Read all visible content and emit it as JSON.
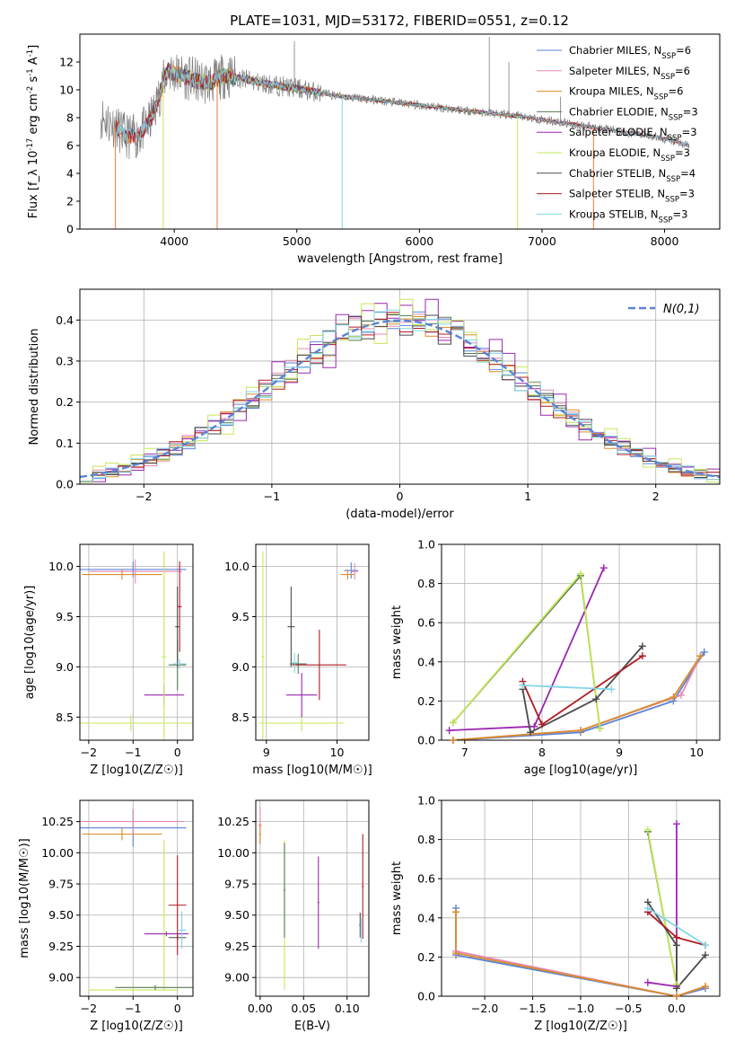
{
  "title": "PLATE=1031, MJD=53172, FIBERID=0551, z=0.12",
  "colors": {
    "chabrier_miles": "#5b84d6",
    "salpeter_miles": "#e58ab4",
    "kroupa_miles": "#d98c2b",
    "chabrier_elodie": "#5a7a55",
    "salpeter_elodie": "#9b27b0",
    "kroupa_elodie": "#c6e85a",
    "chabrier_stelib": "#4a4a4a",
    "salpeter_stelib": "#b01c24",
    "kroupa_stelib": "#82d6e6",
    "spectrum": "#7d7d7d",
    "normal": "#5b84d6",
    "orange": "#ef7b2f"
  },
  "chart_data": [
    {
      "id": "spectrum",
      "type": "line",
      "xlabel": "wavelength [Angstrom, rest frame]",
      "ylabel": "Flux [f_λ 10^-17 erg cm^-2 s^-1 A^-1]",
      "xlim": [
        3230,
        8450
      ],
      "ylim": [
        0,
        14
      ],
      "xticks": [
        4000,
        5000,
        6000,
        7000,
        8000
      ],
      "yticks": [
        0,
        2,
        4,
        6,
        8,
        10,
        12
      ],
      "legend_position": "upper-right",
      "legend": [
        {
          "text": "Chabrier MILES, N_SSP=6",
          "key": "chabrier_miles"
        },
        {
          "text": "Salpeter MILES, N_SSP=6",
          "key": "salpeter_miles"
        },
        {
          "text": "Kroupa MILES, N_SSP=6",
          "key": "kroupa_miles"
        },
        {
          "text": "Chabrier ELODIE, N_SSP=3",
          "key": "chabrier_elodie"
        },
        {
          "text": "Salpeter ELODIE, N_SSP=3",
          "key": "salpeter_elodie"
        },
        {
          "text": "Kroupa ELODIE, N_SSP=3",
          "key": "kroupa_elodie"
        },
        {
          "text": "Chabrier STELIB, N_SSP=4",
          "key": "chabrier_stelib"
        },
        {
          "text": "Salpeter STELIB, N_SSP=3",
          "key": "salpeter_stelib"
        },
        {
          "text": "Kroupa STELIB, N_SSP=3",
          "key": "kroupa_stelib"
        }
      ],
      "continuum": {
        "x": [
          3400,
          3500,
          3600,
          3700,
          3800,
          3850,
          3900,
          3950,
          4000,
          4100,
          4200,
          4300,
          4400,
          4500,
          4700,
          5000,
          5300,
          5600,
          6000,
          6300,
          6600,
          6900,
          7200,
          7500,
          7800,
          8000,
          8200
        ],
        "y": [
          8.1,
          7.5,
          6.7,
          6.6,
          7.7,
          8.8,
          10.3,
          11.4,
          11.2,
          10.9,
          10.6,
          10.5,
          11.0,
          10.9,
          10.5,
          10.1,
          9.6,
          9.3,
          8.9,
          8.6,
          8.3,
          8.0,
          7.6,
          7.2,
          6.8,
          6.5,
          6.0
        ]
      },
      "dropouts": [
        3520,
        3910,
        4350,
        5370,
        6800,
        7420
      ],
      "spikes": [
        {
          "x": 4980,
          "y": 13.5
        },
        {
          "x": 6570,
          "y": 13.8
        },
        {
          "x": 6730,
          "y": 12.0
        },
        {
          "x": 7150,
          "y": 9.5
        }
      ]
    },
    {
      "id": "residuals",
      "type": "histogram",
      "xlabel": "(data-model)/error",
      "ylabel": "Normed distribution",
      "xlim": [
        -2.5,
        2.5
      ],
      "ylim": [
        0,
        0.475
      ],
      "xticks": [
        -2,
        -1,
        0,
        1,
        2
      ],
      "yticks": [
        0.0,
        0.1,
        0.2,
        0.3,
        0.4
      ],
      "bin_width": 0.1,
      "legend_position": "upper-right",
      "legend": [
        {
          "text": "N(0,1)",
          "key": "normal"
        }
      ]
    },
    {
      "id": "age_vs_Z",
      "type": "errorbar",
      "xlabel": "Z [log10(Z/Z☉)]",
      "ylabel": "age  [log10(age/yr)]",
      "xlim": [
        -2.2,
        0.35
      ],
      "ylim": [
        8.27,
        10.22
      ],
      "xticks": [
        -2,
        -1,
        0
      ],
      "yticks": [
        8.5,
        9.0,
        9.5,
        10.0
      ],
      "points": [
        {
          "key": "chabrier_miles",
          "x": -1.0,
          "y": 9.97,
          "xerr": 1.2,
          "yerr": 0.08
        },
        {
          "key": "salpeter_miles",
          "x": -0.95,
          "y": 9.95,
          "xerr": 1.05,
          "yerr": 0.12
        },
        {
          "key": "kroupa_miles",
          "x": -1.25,
          "y": 9.92,
          "xerr": 0.9,
          "yerr": 0.05
        },
        {
          "key": "chabrier_elodie",
          "x": 0.0,
          "y": 9.02,
          "xerr": 0.2,
          "yerr": 0.25
        },
        {
          "key": "salpeter_elodie",
          "x": -0.3,
          "y": 8.72,
          "xerr": 0.45,
          "yerr": 0.1
        },
        {
          "key": "kroupa_elodie",
          "x": -1.05,
          "y": 8.44,
          "xerr": 1.5,
          "yerr": 0.08
        },
        {
          "key": "kroupa_elodie",
          "x": -0.3,
          "y": 9.1,
          "xerr": 0.05,
          "yerr": 1.05
        },
        {
          "key": "chabrier_stelib",
          "x": 0.0,
          "y": 9.4,
          "xerr": 0.05,
          "yerr": 0.4
        },
        {
          "key": "salpeter_stelib",
          "x": 0.05,
          "y": 9.6,
          "xerr": 0.05,
          "yerr": 0.45
        },
        {
          "key": "kroupa_stelib",
          "x": 0.05,
          "y": 9.03,
          "xerr": 0.15,
          "yerr": 0.05
        }
      ]
    },
    {
      "id": "age_vs_mass",
      "type": "errorbar",
      "xlabel": "mass [log10(M/M☉)]",
      "xlim": [
        8.85,
        10.45
      ],
      "ylim": [
        8.27,
        10.22
      ],
      "xticks": [
        9,
        10
      ],
      "yticks": [
        8.5,
        9.0,
        9.5,
        10.0
      ],
      "points": [
        {
          "key": "chabrier_miles",
          "x": 10.2,
          "y": 9.96,
          "xerr": 0.1,
          "yerr": 0.08
        },
        {
          "key": "salpeter_miles",
          "x": 10.25,
          "y": 9.95,
          "xerr": 0.05,
          "yerr": 0.08
        },
        {
          "key": "kroupa_miles",
          "x": 10.15,
          "y": 9.92,
          "xerr": 0.1,
          "yerr": 0.05
        },
        {
          "key": "kroupa_elodie",
          "x": 9.5,
          "y": 8.44,
          "xerr": 0.6,
          "yerr": 0.08
        },
        {
          "key": "kroupa_elodie",
          "x": 8.95,
          "y": 9.1,
          "xerr": 0.02,
          "yerr": 1.05
        },
        {
          "key": "chabrier_elodie",
          "x": 9.45,
          "y": 9.03,
          "xerr": 0.12,
          "yerr": 0.1
        },
        {
          "key": "salpeter_elodie",
          "x": 9.5,
          "y": 8.72,
          "xerr": 0.22,
          "yerr": 0.22
        },
        {
          "key": "chabrier_stelib",
          "x": 9.35,
          "y": 9.4,
          "xerr": 0.05,
          "yerr": 0.4
        },
        {
          "key": "salpeter_stelib",
          "x": 9.75,
          "y": 9.02,
          "xerr": 0.38,
          "yerr": 0.35
        },
        {
          "key": "kroupa_stelib",
          "x": 9.4,
          "y": 9.04,
          "xerr": 0.05,
          "yerr": 0.1
        }
      ]
    },
    {
      "id": "weight_vs_age",
      "type": "line",
      "xlabel": "age  [log10(age/yr)]",
      "ylabel": "mass weight",
      "xlim": [
        6.7,
        10.3
      ],
      "ylim": [
        0,
        1.0
      ],
      "xticks": [
        7,
        8,
        9,
        10
      ],
      "yticks": [
        0.0,
        0.2,
        0.4,
        0.6,
        0.8,
        1.0
      ],
      "series": [
        {
          "key": "chabrier_miles",
          "x": [
            6.85,
            8.5,
            9.7,
            10.1
          ],
          "y": [
            0.0,
            0.04,
            0.2,
            0.45
          ]
        },
        {
          "key": "salpeter_miles",
          "x": [
            6.85,
            8.5,
            9.8,
            10.05
          ],
          "y": [
            0.0,
            0.05,
            0.23,
            0.43
          ]
        },
        {
          "key": "kroupa_miles",
          "x": [
            6.85,
            8.5,
            9.7,
            10.05
          ],
          "y": [
            0.0,
            0.05,
            0.22,
            0.43
          ]
        },
        {
          "key": "chabrier_elodie",
          "x": [
            6.85,
            8.5,
            8.75
          ],
          "y": [
            0.09,
            0.84,
            0.06
          ]
        },
        {
          "key": "salpeter_elodie",
          "x": [
            6.8,
            7.9,
            8.8
          ],
          "y": [
            0.05,
            0.07,
            0.88
          ]
        },
        {
          "key": "kroupa_elodie",
          "x": [
            6.85,
            8.5,
            8.75
          ],
          "y": [
            0.09,
            0.85,
            0.06
          ]
        },
        {
          "key": "chabrier_stelib",
          "x": [
            7.75,
            7.85,
            8.7,
            9.3
          ],
          "y": [
            0.26,
            0.04,
            0.21,
            0.48
          ]
        },
        {
          "key": "salpeter_stelib",
          "x": [
            7.75,
            8.0,
            9.3
          ],
          "y": [
            0.3,
            0.08,
            0.43
          ]
        },
        {
          "key": "kroupa_stelib",
          "x": [
            7.75,
            8.9
          ],
          "y": [
            0.28,
            0.26
          ]
        }
      ]
    },
    {
      "id": "mass_vs_Z",
      "type": "errorbar",
      "xlabel": "Z [log10(Z/Z☉)]",
      "ylabel": "mass [log10(M/M☉)]",
      "xlim": [
        -2.2,
        0.35
      ],
      "ylim": [
        8.85,
        10.42
      ],
      "xticks": [
        -2,
        -1,
        0
      ],
      "yticks": [
        9.0,
        9.25,
        9.5,
        9.75,
        10.0,
        10.25
      ],
      "points": [
        {
          "key": "chabrier_miles",
          "x": -1.0,
          "y": 10.2,
          "xerr": 1.2,
          "yerr": 0.15
        },
        {
          "key": "salpeter_miles",
          "x": -1.0,
          "y": 10.25,
          "xerr": 1.15,
          "yerr": 0.1
        },
        {
          "key": "kroupa_miles",
          "x": -1.25,
          "y": 10.15,
          "xerr": 0.9,
          "yerr": 0.05
        },
        {
          "key": "kroupa_elodie",
          "x": -0.3,
          "y": 9.5,
          "xerr": 0.05,
          "yerr": 0.6
        },
        {
          "key": "kroupa_elodie",
          "x": -1.0,
          "y": 8.9,
          "xerr": 1.0,
          "yerr": 0.02
        },
        {
          "key": "chabrier_elodie",
          "x": -0.5,
          "y": 8.92,
          "xerr": 0.9,
          "yerr": 0.02
        },
        {
          "key": "salpeter_elodie",
          "x": -0.25,
          "y": 9.35,
          "xerr": 0.5,
          "yerr": 0.02
        },
        {
          "key": "chabrier_stelib",
          "x": 0.0,
          "y": 9.32,
          "xerr": 0.2,
          "yerr": 0.02
        },
        {
          "key": "salpeter_stelib",
          "x": 0.0,
          "y": 9.58,
          "xerr": 0.2,
          "yerr": 0.4
        },
        {
          "key": "kroupa_stelib",
          "x": 0.1,
          "y": 9.38,
          "xerr": 0.1,
          "yerr": 0.15
        }
      ]
    },
    {
      "id": "mass_vs_ebv",
      "type": "errorbar",
      "xlabel": "E(B-V)",
      "xlim": [
        -0.005,
        0.125
      ],
      "ylim": [
        8.85,
        10.42
      ],
      "xticks": [
        0.0,
        0.05,
        0.1
      ],
      "yticks": [
        9.0,
        9.25,
        9.5,
        9.75,
        10.0,
        10.25
      ],
      "points": [
        {
          "key": "salpeter_miles",
          "x": 0.0,
          "y": 10.22,
          "xerr": 0.002,
          "yerr": 0.15
        },
        {
          "key": "kroupa_miles",
          "x": 0.0,
          "y": 10.15,
          "xerr": 0.001,
          "yerr": 0.08
        },
        {
          "key": "kroupa_elodie",
          "x": 0.028,
          "y": 9.5,
          "xerr": 0.001,
          "yerr": 0.6
        },
        {
          "key": "chabrier_elodie",
          "x": 0.028,
          "y": 9.7,
          "xerr": 0.001,
          "yerr": 0.38
        },
        {
          "key": "salpeter_elodie",
          "x": 0.067,
          "y": 9.6,
          "xerr": 0.001,
          "yerr": 0.37
        },
        {
          "key": "salpeter_stelib",
          "x": 0.118,
          "y": 9.73,
          "xerr": 0.001,
          "yerr": 0.42
        },
        {
          "key": "chabrier_stelib",
          "x": 0.115,
          "y": 9.42,
          "xerr": 0.001,
          "yerr": 0.1
        },
        {
          "key": "kroupa_stelib",
          "x": 0.116,
          "y": 9.38,
          "xerr": 0.001,
          "yerr": 0.1
        }
      ]
    },
    {
      "id": "weight_vs_Z",
      "type": "line",
      "xlabel": "Z [log10(Z/Z☉)]",
      "ylabel": "mass weight",
      "xlim": [
        -2.45,
        0.45
      ],
      "ylim": [
        0,
        1.0
      ],
      "xticks": [
        -2.0,
        -1.5,
        -1.0,
        -0.5,
        0.0
      ],
      "yticks": [
        0.0,
        0.2,
        0.4,
        0.6,
        0.8,
        1.0
      ],
      "series": [
        {
          "key": "chabrier_miles",
          "x": [
            -2.3,
            -2.3,
            0.0,
            0.3
          ],
          "y": [
            0.45,
            0.21,
            0.0,
            0.04
          ]
        },
        {
          "key": "salpeter_miles",
          "x": [
            -2.3,
            -2.3,
            0.0,
            0.3
          ],
          "y": [
            0.43,
            0.23,
            0.0,
            0.05
          ]
        },
        {
          "key": "kroupa_miles",
          "x": [
            -2.3,
            -2.3,
            0.0,
            0.3
          ],
          "y": [
            0.43,
            0.22,
            0.0,
            0.05
          ]
        },
        {
          "key": "chabrier_elodie",
          "x": [
            -0.3,
            0.0
          ],
          "y": [
            0.84,
            0.06
          ]
        },
        {
          "key": "salpeter_elodie",
          "x": [
            -0.3,
            0.0,
            0.0
          ],
          "y": [
            0.07,
            0.05,
            0.88
          ]
        },
        {
          "key": "kroupa_elodie",
          "x": [
            -0.3,
            0.0
          ],
          "y": [
            0.85,
            0.06
          ]
        },
        {
          "key": "chabrier_stelib",
          "x": [
            -0.3,
            0.0,
            0.0,
            0.3
          ],
          "y": [
            0.48,
            0.26,
            0.04,
            0.21
          ]
        },
        {
          "key": "salpeter_stelib",
          "x": [
            -0.3,
            0.0,
            0.3
          ],
          "y": [
            0.43,
            0.3,
            0.26
          ]
        },
        {
          "key": "kroupa_stelib",
          "x": [
            -0.3,
            0.3
          ],
          "y": [
            0.45,
            0.26
          ]
        }
      ]
    }
  ]
}
